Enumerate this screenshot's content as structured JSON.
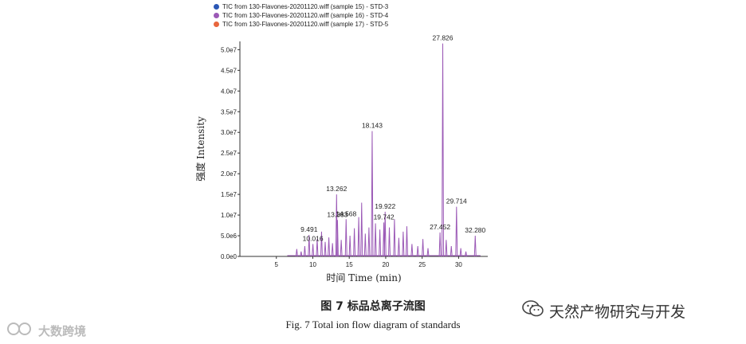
{
  "chart_data": {
    "type": "line",
    "xlabel": "时间 Time (min)",
    "ylabel": "强度 Intensity",
    "xlim": [
      0,
      34
    ],
    "ylim": [
      0,
      52000000
    ],
    "x_ticks": [
      5,
      10,
      15,
      20,
      25,
      30
    ],
    "y_ticks": [
      0,
      5000000,
      10000000,
      15000000,
      20000000,
      25000000,
      30000000,
      35000000,
      40000000,
      45000000,
      50000000
    ],
    "y_tick_labels": [
      "0.0e0",
      "5.0e6",
      "1.0e7",
      "1.5e7",
      "2.0e7",
      "2.5e7",
      "3.0e7",
      "3.5e7",
      "4.0e7",
      "4.5e7",
      "5.0e7"
    ],
    "legend": [
      {
        "label": "TIC from 130-Flavones-20201120.wiff (sample 15) - STD-3",
        "color": "#2a57b5"
      },
      {
        "label": "TIC from 130-Flavones-20201120.wiff (sample 16) - STD-4",
        "color": "#9b59b6"
      },
      {
        "label": "TIC from 130-Flavones-20201120.wiff (sample 17) - STD-5",
        "color": "#e8663d"
      }
    ],
    "peaks": [
      {
        "rt": 7.8,
        "y": 1800000
      },
      {
        "rt": 8.4,
        "y": 1200000
      },
      {
        "rt": 8.9,
        "y": 2500000
      },
      {
        "rt": 9.491,
        "y": 5200000,
        "label": "9.491"
      },
      {
        "rt": 10.016,
        "y": 3000000,
        "label": "10.016"
      },
      {
        "rt": 10.6,
        "y": 4200000
      },
      {
        "rt": 11.2,
        "y": 6000000
      },
      {
        "rt": 11.7,
        "y": 3500000
      },
      {
        "rt": 12.2,
        "y": 4600000
      },
      {
        "rt": 12.7,
        "y": 3200000
      },
      {
        "rt": 13.262,
        "y": 15000000,
        "label": "13.262"
      },
      {
        "rt": 13.383,
        "y": 8800000,
        "label": "13.383"
      },
      {
        "rt": 13.9,
        "y": 4000000
      },
      {
        "rt": 14.568,
        "y": 9000000,
        "label": "14.568"
      },
      {
        "rt": 15.1,
        "y": 5000000
      },
      {
        "rt": 15.7,
        "y": 6800000
      },
      {
        "rt": 16.3,
        "y": 9500000
      },
      {
        "rt": 16.7,
        "y": 13000000
      },
      {
        "rt": 17.2,
        "y": 5500000
      },
      {
        "rt": 17.7,
        "y": 7000000
      },
      {
        "rt": 18.143,
        "y": 30300000,
        "label": "18.143"
      },
      {
        "rt": 18.6,
        "y": 8000000
      },
      {
        "rt": 19.2,
        "y": 6500000
      },
      {
        "rt": 19.742,
        "y": 8200000,
        "label": "19.742"
      },
      {
        "rt": 19.922,
        "y": 10800000,
        "label": "19.922"
      },
      {
        "rt": 20.5,
        "y": 7000000
      },
      {
        "rt": 21.2,
        "y": 9000000
      },
      {
        "rt": 21.8,
        "y": 4500000
      },
      {
        "rt": 22.4,
        "y": 6000000
      },
      {
        "rt": 22.9,
        "y": 7300000
      },
      {
        "rt": 23.6,
        "y": 3000000
      },
      {
        "rt": 24.4,
        "y": 2500000
      },
      {
        "rt": 25.1,
        "y": 4200000
      },
      {
        "rt": 25.8,
        "y": 2000000
      },
      {
        "rt": 27.452,
        "y": 5800000,
        "label": "27.452"
      },
      {
        "rt": 27.826,
        "y": 51500000,
        "label": "27.826"
      },
      {
        "rt": 28.3,
        "y": 4000000
      },
      {
        "rt": 29.0,
        "y": 2500000
      },
      {
        "rt": 29.714,
        "y": 12000000,
        "label": "29.714"
      },
      {
        "rt": 30.3,
        "y": 2000000
      },
      {
        "rt": 31.0,
        "y": 1200000
      },
      {
        "rt": 32.28,
        "y": 5000000,
        "label": "32.280"
      }
    ]
  },
  "captions": {
    "cn": "图 7    标品总离子流图",
    "en": "Fig. 7    Total ion flow diagram of standards"
  },
  "watermarks": {
    "right": "天然产物研究与开发",
    "left": "大数跨境",
    "right_icon": "wechat-icon",
    "left_icon": "logo-icon"
  }
}
